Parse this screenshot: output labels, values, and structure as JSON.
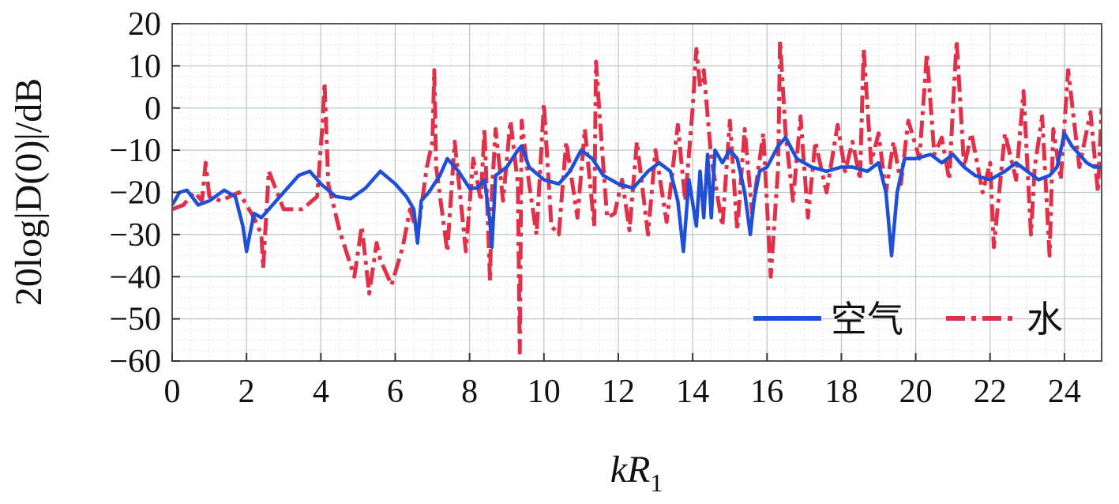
{
  "chart_data": {
    "type": "line",
    "title": "",
    "xlabel": "kR",
    "xlabel_subscript": "1",
    "ylabel": "20log|D(0)|/dB",
    "xlim": [
      0,
      25
    ],
    "ylim": [
      -60,
      20
    ],
    "xticks": [
      0,
      2,
      4,
      6,
      8,
      10,
      12,
      14,
      16,
      18,
      20,
      22,
      24
    ],
    "yticks": [
      20,
      10,
      0,
      -10,
      -20,
      -30,
      -40,
      -50,
      -60
    ],
    "ytick_labels": [
      "20",
      "10",
      "0",
      "−10",
      "−20",
      "−30",
      "−40",
      "−50",
      "−60"
    ],
    "grid": true,
    "legend_position": "bottom-right",
    "series": [
      {
        "name": "空气",
        "color": "#1f4fd6",
        "style": "solid",
        "x": [
          0,
          0.2,
          0.4,
          0.7,
          1.0,
          1.4,
          1.7,
          1.9,
          2.0,
          2.2,
          2.4,
          2.6,
          3.0,
          3.4,
          3.7,
          4.0,
          4.4,
          4.8,
          5.2,
          5.6,
          6.0,
          6.3,
          6.5,
          6.6,
          6.7,
          6.9,
          7.2,
          7.4,
          7.7,
          8.0,
          8.2,
          8.4,
          8.55,
          8.6,
          8.7,
          9.0,
          9.3,
          9.4,
          9.6,
          10.0,
          10.4,
          10.7,
          11.0,
          11.3,
          11.6,
          12.0,
          12.4,
          12.8,
          13.1,
          13.4,
          13.6,
          13.75,
          13.9,
          14.1,
          14.2,
          14.3,
          14.4,
          14.5,
          14.6,
          14.8,
          15.0,
          15.2,
          15.4,
          15.55,
          15.65,
          15.8,
          16.0,
          16.3,
          16.5,
          16.8,
          17.2,
          17.6,
          18.0,
          18.3,
          18.7,
          19.0,
          19.2,
          19.35,
          19.5,
          19.7,
          20.0,
          20.4,
          20.7,
          21.0,
          21.3,
          21.6,
          22.0,
          22.4,
          22.7,
          23.0,
          23.3,
          23.6,
          23.8,
          24.0,
          24.2,
          24.4,
          24.6,
          24.8,
          25.0
        ],
        "values": [
          -23,
          -20,
          -19.5,
          -23,
          -22,
          -19.5,
          -21,
          -28,
          -34,
          -25,
          -26,
          -24,
          -20,
          -16,
          -15,
          -18,
          -21,
          -21.5,
          -19,
          -15,
          -18,
          -21,
          -24,
          -32,
          -22,
          -20,
          -16,
          -12,
          -15,
          -19,
          -19,
          -17,
          -27,
          -33,
          -16,
          -14,
          -10,
          -9,
          -14,
          -17,
          -18,
          -15,
          -10,
          -12,
          -16,
          -18,
          -19,
          -15,
          -13,
          -15,
          -22,
          -34,
          -17,
          -28,
          -15,
          -26,
          -11,
          -26,
          -10,
          -13,
          -10,
          -12,
          -20,
          -30,
          -22,
          -15,
          -14,
          -9,
          -7,
          -12,
          -14,
          -15,
          -14,
          -14,
          -15,
          -13,
          -20,
          -35,
          -20,
          -12,
          -12,
          -11,
          -13,
          -11,
          -14,
          -16,
          -17,
          -15,
          -13,
          -15,
          -17,
          -16,
          -14,
          -6,
          -9,
          -11,
          -13,
          -14,
          -14
        ]
      },
      {
        "name": "水",
        "color": "#e0304a",
        "style": "dashdot",
        "x": [
          0,
          0.3,
          0.6,
          0.8,
          0.9,
          1.0,
          1.3,
          1.8,
          2.2,
          2.4,
          2.45,
          2.5,
          2.6,
          3.0,
          3.5,
          3.9,
          4.05,
          4.1,
          4.2,
          4.5,
          4.9,
          5.1,
          5.3,
          5.5,
          5.6,
          5.9,
          6.2,
          6.4,
          6.6,
          6.85,
          7.0,
          7.05,
          7.1,
          7.4,
          7.6,
          7.9,
          8.1,
          8.3,
          8.4,
          8.55,
          8.6,
          8.7,
          8.9,
          9.1,
          9.3,
          9.35,
          9.4,
          9.6,
          9.8,
          10.0,
          10.2,
          10.4,
          10.6,
          10.9,
          11.1,
          11.35,
          11.4,
          11.5,
          11.7,
          11.9,
          12.1,
          12.3,
          12.5,
          12.8,
          13.0,
          13.3,
          13.6,
          13.8,
          14.0,
          14.1,
          14.2,
          14.3,
          14.5,
          14.8,
          15.0,
          15.2,
          15.4,
          15.6,
          15.9,
          16.1,
          16.3,
          16.35,
          16.5,
          16.7,
          16.9,
          17.1,
          17.3,
          17.6,
          17.9,
          18.1,
          18.3,
          18.5,
          18.6,
          18.8,
          19.0,
          19.2,
          19.4,
          19.6,
          19.8,
          20.1,
          20.3,
          20.5,
          20.7,
          20.9,
          21.0,
          21.1,
          21.3,
          21.5,
          21.8,
          22.0,
          22.1,
          22.4,
          22.7,
          22.9,
          23.1,
          23.2,
          23.4,
          23.6,
          23.7,
          23.9,
          24.1,
          24.4,
          24.7,
          24.9,
          25.0
        ],
        "values": [
          -24,
          -23,
          -20,
          -22,
          -13,
          -21,
          -22,
          -20,
          -26,
          -30,
          -38,
          -30,
          -15,
          -24,
          -24,
          -21,
          -3,
          6,
          -18,
          -29,
          -40,
          -28,
          -44,
          -32,
          -36,
          -42,
          -33,
          -24,
          -30,
          -14,
          -8,
          9,
          -14,
          -34,
          -8,
          -34,
          -12,
          -22,
          -5,
          -41,
          -20,
          -5,
          -22,
          -3,
          -18,
          -58,
          -3,
          -18,
          -30,
          1,
          -28,
          -30,
          -8,
          -26,
          -5,
          -28,
          11,
          -2,
          -26,
          -25,
          -17,
          -29,
          -8,
          -30,
          -10,
          -27,
          -4,
          -22,
          0,
          14,
          5,
          9,
          -12,
          -28,
          -3,
          -29,
          -5,
          -25,
          -6,
          -40,
          -14,
          16,
          -6,
          -22,
          -2,
          -26,
          -8,
          -20,
          -4,
          -15,
          -8,
          -17,
          14,
          -13,
          -6,
          -20,
          -8,
          -18,
          -3,
          -12,
          13,
          -11,
          -7,
          -17,
          0,
          16,
          -14,
          -6,
          -20,
          -13,
          -33,
          -6,
          -17,
          4,
          -30,
          -14,
          -2,
          -35,
          -5,
          -17,
          9,
          -14,
          -1,
          -20,
          0
        ]
      }
    ]
  }
}
